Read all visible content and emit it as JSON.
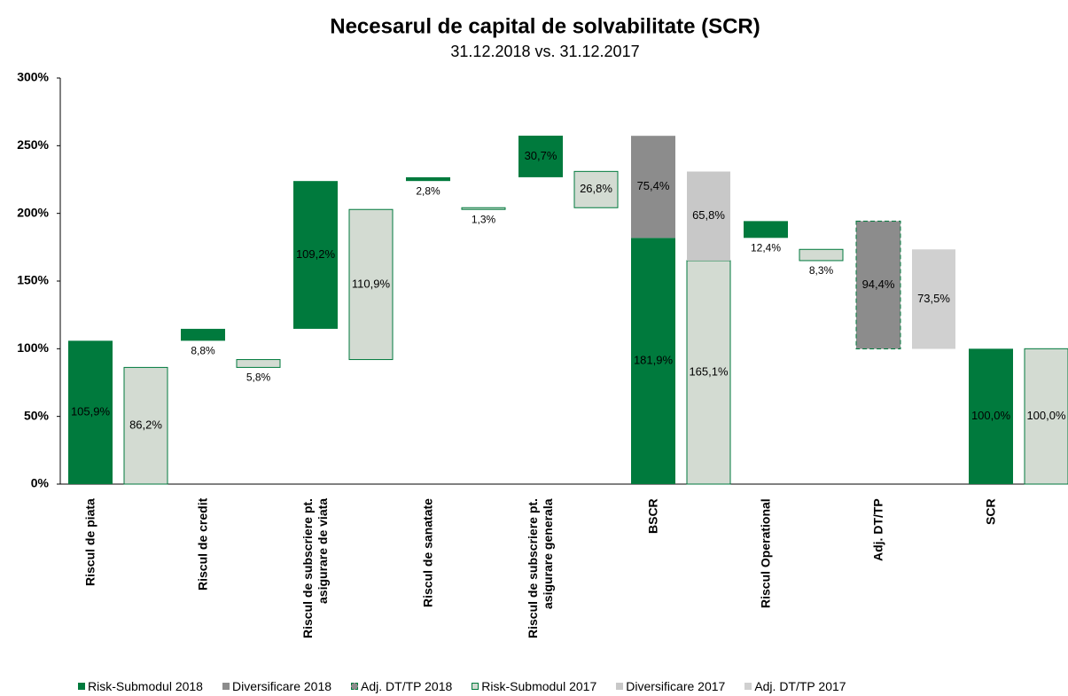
{
  "chart_data": {
    "type": "waterfall",
    "title": "Necesarul de capital de solvabilitate (SCR)",
    "subtitle": "31.12.2018 vs. 31.12.2017",
    "categories": [
      "Riscul de piata",
      "Riscul de credit",
      "Riscul de subscriere pt.\nasigurare de viata",
      "Riscul de sanatate",
      "Riscul de subscriere pt.\nasigurare generala",
      "BSCR",
      "Riscul Operational",
      "Adj. DT/TP",
      "SCR"
    ],
    "ylim": [
      0,
      300
    ],
    "yticks": [
      {
        "value": 0,
        "label": "0%"
      },
      {
        "value": 50,
        "label": "50%"
      },
      {
        "value": 100,
        "label": "100%"
      },
      {
        "value": 150,
        "label": "150%"
      },
      {
        "value": 200,
        "label": "200%"
      },
      {
        "value": 250,
        "label": "250%"
      },
      {
        "value": 300,
        "label": "300%"
      }
    ],
    "grid": false,
    "legend": "bottom",
    "series": [
      {
        "name": "Risk-Submodul 2018",
        "color": "#007a3d",
        "values": [
          105.9,
          8.8,
          109.2,
          2.8,
          30.7,
          181.9,
          12.4,
          null,
          100.0
        ],
        "value_labels": [
          "105,9%",
          "8,8%",
          "109,2%",
          "2,8%",
          "30,7%",
          "181,9%",
          "12,4%",
          null,
          "100,0%"
        ]
      },
      {
        "name": "Diversificare 2018",
        "color": "#8c8c8c",
        "values": [
          null,
          null,
          null,
          null,
          null,
          75.4,
          null,
          null,
          null
        ],
        "value_labels": [
          null,
          null,
          null,
          null,
          null,
          "75,4%",
          null,
          null,
          null
        ]
      },
      {
        "name": "Adj. DT/TP 2018",
        "color": "#8c8c8c",
        "stroke": "#007a3d",
        "dashed": true,
        "values": [
          null,
          null,
          null,
          null,
          null,
          null,
          null,
          94.4,
          null
        ],
        "value_labels": [
          null,
          null,
          null,
          null,
          null,
          null,
          null,
          "94,4%",
          null
        ]
      },
      {
        "name": "Risk-Submodul 2017",
        "color": "#d3dbd2",
        "stroke": "#007a3d",
        "values": [
          86.2,
          5.8,
          110.9,
          1.3,
          26.8,
          165.1,
          8.3,
          null,
          100.0
        ],
        "value_labels": [
          "86,2%",
          "5,8%",
          "110,9%",
          "1,3%",
          "26,8%",
          "165,1%",
          "8,3%",
          null,
          "100,0%"
        ]
      },
      {
        "name": "Diversificare 2017",
        "color": "#c8c8c8",
        "values": [
          null,
          null,
          null,
          null,
          null,
          65.8,
          null,
          null,
          null
        ],
        "value_labels": [
          null,
          null,
          null,
          null,
          null,
          "65,8%",
          null,
          null,
          null
        ]
      },
      {
        "name": "Adj. DT/TP 2017",
        "color": "#d0d0d0",
        "values": [
          null,
          null,
          null,
          null,
          null,
          null,
          null,
          73.5,
          null
        ],
        "value_labels": [
          null,
          null,
          null,
          null,
          null,
          null,
          null,
          "73,5%",
          null
        ]
      }
    ]
  }
}
